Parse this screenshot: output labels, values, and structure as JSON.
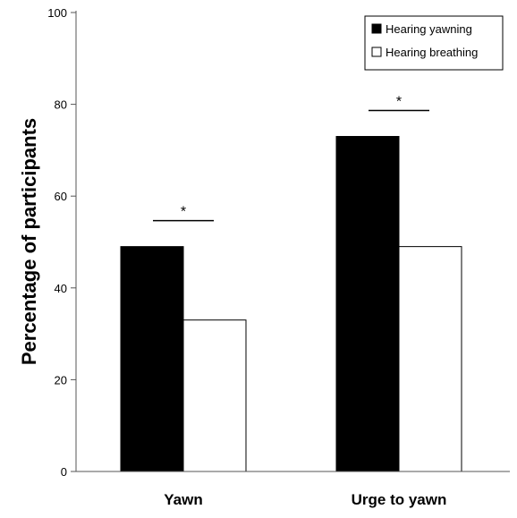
{
  "chart_data": {
    "type": "bar",
    "title": "",
    "xlabel": "",
    "ylabel": "Percentage of participants",
    "ylim": [
      0,
      100
    ],
    "yticks": [
      0,
      20,
      40,
      60,
      80,
      100
    ],
    "categories": [
      "Yawn",
      "Urge to yawn"
    ],
    "series": [
      {
        "name": "Hearing yawning",
        "values": [
          49,
          73
        ],
        "color": "#000000"
      },
      {
        "name": "Hearing breathing",
        "values": [
          33,
          49
        ],
        "color": "#ffffff"
      }
    ],
    "significance": [
      {
        "category": "Yawn",
        "label": "*"
      },
      {
        "category": "Urge to yawn",
        "label": "*"
      }
    ],
    "legend_position": "top-right",
    "grid": false
  }
}
